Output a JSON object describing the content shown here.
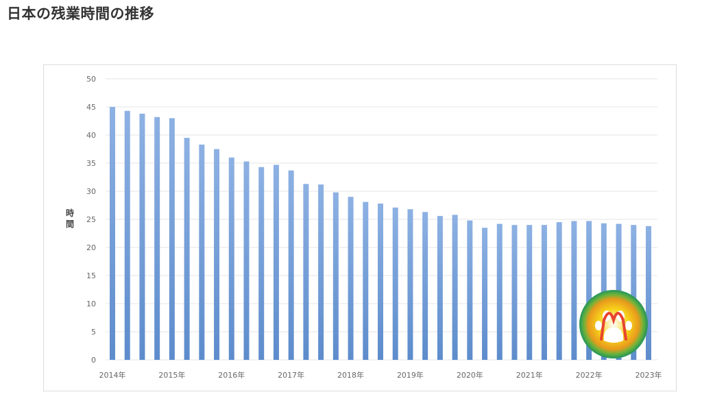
{
  "page": {
    "title": "日本の残業時間の推移"
  },
  "colors": {
    "bar_top": "#8db1e3",
    "bar_bottom": "#5d8ccc",
    "grid": "#e6e6e6",
    "logo_ring": "#2e9a55",
    "logo_inner": "#f2c018",
    "logo_paw": "#e8442e"
  },
  "logo": {
    "icon": "paw-logo-icon"
  },
  "chart_data": {
    "type": "bar",
    "ylabel": "時間",
    "xlabel": "",
    "ylim": [
      0,
      50
    ],
    "yticks": [
      0,
      5,
      10,
      15,
      20,
      25,
      30,
      35,
      40,
      45,
      50
    ],
    "grid": true,
    "xtick_labels": [
      "2014年",
      "2015年",
      "2016年",
      "2017年",
      "2018年",
      "2019年",
      "2020年",
      "2021年",
      "2022年",
      "2023年"
    ],
    "values": [
      45.0,
      44.3,
      43.8,
      43.2,
      43.0,
      39.5,
      38.3,
      37.5,
      36.0,
      35.3,
      34.3,
      34.7,
      33.7,
      31.3,
      31.2,
      29.8,
      29.0,
      28.1,
      27.8,
      27.1,
      26.8,
      26.3,
      25.6,
      25.8,
      24.8,
      23.5,
      24.2,
      24.0,
      24.0,
      24.0,
      24.5,
      24.7,
      24.7,
      24.3,
      24.2,
      24.0,
      23.8
    ]
  }
}
